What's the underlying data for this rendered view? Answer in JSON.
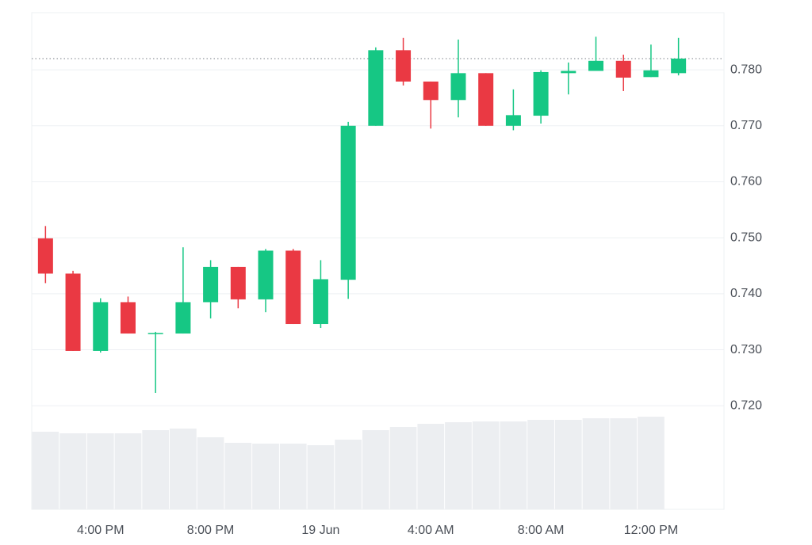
{
  "chart_data": {
    "type": "candlestick",
    "categories": [
      null,
      null,
      "4:00 PM",
      null,
      null,
      null,
      "8:00 PM",
      null,
      null,
      null,
      "19 Jun",
      null,
      null,
      null,
      "4:00 AM",
      null,
      null,
      null,
      "8:00 AM",
      null,
      null,
      null,
      "12:00 PM",
      null
    ],
    "open": [
      0.7499,
      0.7436,
      0.7298,
      0.7385,
      0.733,
      0.7329,
      0.7385,
      0.7448,
      0.739,
      0.7477,
      0.7346,
      0.7425,
      0.77,
      0.7835,
      0.7779,
      0.7746,
      0.7794,
      0.77,
      0.7718,
      0.7794,
      0.7798,
      0.7816,
      0.7787,
      0.7794
    ],
    "high": [
      0.7521,
      0.7441,
      0.7392,
      0.7395,
      0.7332,
      0.7483,
      0.746,
      0.7448,
      0.748,
      0.748,
      0.746,
      0.7707,
      0.784,
      0.7857,
      0.7779,
      0.7854,
      0.7794,
      0.7765,
      0.7799,
      0.7813,
      0.7859,
      0.7827,
      0.7845,
      0.7857
    ],
    "low": [
      0.7419,
      0.7298,
      0.7295,
      0.7329,
      0.7223,
      0.7329,
      0.7356,
      0.7374,
      0.7367,
      0.7346,
      0.7339,
      0.7391,
      0.77,
      0.7772,
      0.7695,
      0.7715,
      0.77,
      0.7692,
      0.7704,
      0.7756,
      0.7798,
      0.7762,
      0.7787,
      0.779
    ],
    "close": [
      0.7436,
      0.7298,
      0.7385,
      0.7329,
      0.733,
      0.7385,
      0.7448,
      0.739,
      0.7477,
      0.7346,
      0.7426,
      0.77,
      0.7835,
      0.7779,
      0.7746,
      0.7794,
      0.77,
      0.7719,
      0.7796,
      0.7798,
      0.7816,
      0.7786,
      0.7799,
      0.782
    ],
    "volume": [
      98,
      96,
      96,
      96,
      100,
      102,
      91,
      84,
      83,
      83,
      81,
      88,
      100,
      104,
      108,
      110,
      111,
      111,
      113,
      113,
      115,
      115,
      117,
      null
    ],
    "up_color": "#16c784",
    "down_color": "#ea3943",
    "volume_color": "#eceef1",
    "last_price": 0.782,
    "ylim": [
      0.7015,
      0.7902
    ],
    "yticks": [
      {
        "value": 0.72,
        "label": "0.720"
      },
      {
        "value": 0.73,
        "label": "0.730"
      },
      {
        "value": 0.74,
        "label": "0.740"
      },
      {
        "value": 0.75,
        "label": "0.750"
      },
      {
        "value": 0.76,
        "label": "0.760"
      },
      {
        "value": 0.77,
        "label": "0.770"
      },
      {
        "value": 0.78,
        "label": "0.780"
      }
    ],
    "grid": true
  }
}
